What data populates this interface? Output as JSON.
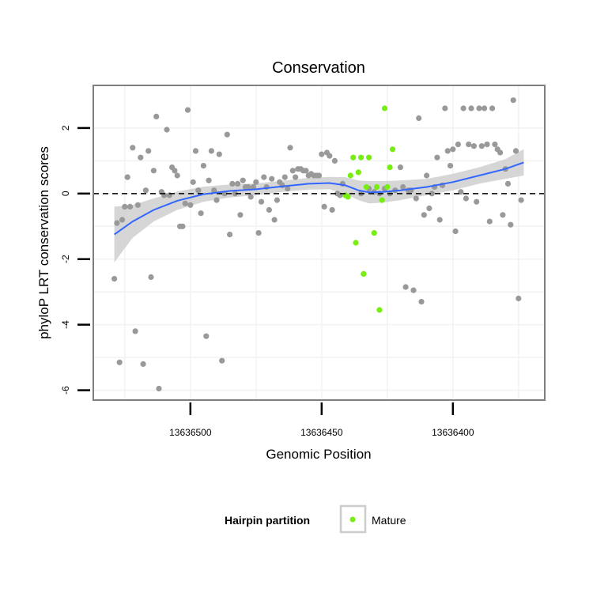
{
  "chart_data": {
    "type": "scatter",
    "title": "Conservation",
    "xlabel": "Genomic Position",
    "ylabel": "phyloP LRT conservation scores",
    "x_reversed": true,
    "xlim": [
      13636537,
      13636365
    ],
    "ylim": [
      -6.3,
      3.3
    ],
    "x_ticks": [
      13636500,
      13636450,
      13636400
    ],
    "y_ticks": [
      2,
      0,
      -2,
      -4,
      -6
    ],
    "reference_line": {
      "y": 0,
      "style": "dashed",
      "color": "#000000"
    },
    "grid": true,
    "legend": {
      "title": "Hairpin partition",
      "placement": "bottom",
      "entries": [
        {
          "label": "Mature",
          "color": "#77ee11"
        }
      ]
    },
    "colors": {
      "other": "#999999",
      "mature": "#77ee11",
      "smooth_line": "#3366ff",
      "ribbon": "#cfcfcf",
      "panel_border": "#7f7f7f"
    },
    "series": [
      {
        "name": "",
        "partition": "other",
        "points": [
          [
            13636529,
            -2.6
          ],
          [
            13636528,
            -0.9
          ],
          [
            13636527,
            -5.15
          ],
          [
            13636526,
            -0.8
          ],
          [
            13636525,
            -0.4
          ],
          [
            13636524,
            0.5
          ],
          [
            13636523,
            -0.4
          ],
          [
            13636522,
            1.4
          ],
          [
            13636521,
            -4.2
          ],
          [
            13636520,
            -0.35
          ],
          [
            13636519,
            1.1
          ],
          [
            13636518,
            -5.2
          ],
          [
            13636517,
            0.1
          ],
          [
            13636516,
            1.3
          ],
          [
            13636515,
            -2.55
          ],
          [
            13636514,
            0.7
          ],
          [
            13636513,
            2.35
          ],
          [
            13636512,
            -5.95
          ],
          [
            13636511,
            0.05
          ],
          [
            13636510,
            -0.05
          ],
          [
            13636509,
            1.95
          ],
          [
            13636508,
            -0.05
          ],
          [
            13636507,
            0.8
          ],
          [
            13636506,
            0.7
          ],
          [
            13636505,
            0.55
          ],
          [
            13636504,
            -1.0
          ],
          [
            13636503,
            -1.0
          ],
          [
            13636502,
            -0.3
          ],
          [
            13636501,
            2.55
          ],
          [
            13636500,
            -0.35
          ],
          [
            13636499,
            0.35
          ],
          [
            13636498,
            1.3
          ],
          [
            13636497,
            0.1
          ],
          [
            13636496,
            -0.6
          ],
          [
            13636495,
            0.85
          ],
          [
            13636494,
            -4.35
          ],
          [
            13636493,
            0.4
          ],
          [
            13636492,
            1.3
          ],
          [
            13636491,
            0.1
          ],
          [
            13636490,
            -0.2
          ],
          [
            13636489,
            1.2
          ],
          [
            13636488,
            -5.1
          ],
          [
            13636487,
            0.0
          ],
          [
            13636486,
            1.8
          ],
          [
            13636485,
            -1.25
          ],
          [
            13636484,
            0.3
          ],
          [
            13636483,
            0.0
          ],
          [
            13636482,
            0.3
          ],
          [
            13636481,
            -0.65
          ],
          [
            13636480,
            0.4
          ],
          [
            13636479,
            0.2
          ],
          [
            13636478,
            0.2
          ],
          [
            13636477,
            -0.1
          ],
          [
            13636476,
            0.2
          ],
          [
            13636475,
            0.35
          ],
          [
            13636474,
            -1.2
          ],
          [
            13636473,
            -0.25
          ],
          [
            13636472,
            0.5
          ],
          [
            13636471,
            0.2
          ],
          [
            13636470,
            -0.5
          ],
          [
            13636469,
            0.45
          ],
          [
            13636468,
            -0.8
          ],
          [
            13636467,
            -0.2
          ],
          [
            13636466,
            0.35
          ],
          [
            13636465,
            0.25
          ],
          [
            13636464,
            0.5
          ],
          [
            13636463,
            0.15
          ],
          [
            13636462,
            1.4
          ],
          [
            13636461,
            0.7
          ],
          [
            13636460,
            0.5
          ],
          [
            13636459,
            0.75
          ],
          [
            13636458,
            0.75
          ],
          [
            13636457,
            0.7
          ],
          [
            13636456,
            0.7
          ],
          [
            13636455,
            0.55
          ],
          [
            13636454,
            0.6
          ],
          [
            13636453,
            0.55
          ],
          [
            13636452,
            0.55
          ],
          [
            13636451,
            0.55
          ],
          [
            13636450,
            1.2
          ],
          [
            13636449,
            -0.4
          ],
          [
            13636448,
            1.25
          ],
          [
            13636447,
            1.15
          ],
          [
            13636446,
            -0.5
          ],
          [
            13636445,
            1.0
          ],
          [
            13636444,
            0.0
          ],
          [
            13636443,
            -0.05
          ],
          [
            13636442,
            0.3
          ],
          [
            13636435,
            0.0
          ],
          [
            13636432,
            0.15
          ],
          [
            13636430,
            0.05
          ],
          [
            13636428,
            0.0
          ],
          [
            13636426,
            0.15
          ],
          [
            13636424,
            0.0
          ],
          [
            13636422,
            0.1
          ],
          [
            13636420,
            0.8
          ],
          [
            13636419,
            0.2
          ],
          [
            13636418,
            -2.85
          ],
          [
            13636417,
            0.1
          ],
          [
            13636416,
            0.1
          ],
          [
            13636415,
            -2.95
          ],
          [
            13636414,
            -0.15
          ],
          [
            13636413,
            2.3
          ],
          [
            13636412,
            -3.3
          ],
          [
            13636411,
            -0.65
          ],
          [
            13636410,
            0.55
          ],
          [
            13636409,
            -0.45
          ],
          [
            13636408,
            0.0
          ],
          [
            13636407,
            0.2
          ],
          [
            13636406,
            1.1
          ],
          [
            13636405,
            -0.8
          ],
          [
            13636404,
            0.25
          ],
          [
            13636403,
            2.6
          ],
          [
            13636402,
            1.3
          ],
          [
            13636401,
            0.85
          ],
          [
            13636400,
            1.35
          ],
          [
            13636399,
            -1.15
          ],
          [
            13636398,
            1.5
          ],
          [
            13636397,
            0.05
          ],
          [
            13636396,
            2.6
          ],
          [
            13636395,
            -0.15
          ],
          [
            13636394,
            1.5
          ],
          [
            13636393,
            2.6
          ],
          [
            13636392,
            1.45
          ],
          [
            13636391,
            -0.25
          ],
          [
            13636390,
            2.6
          ],
          [
            13636389,
            1.45
          ],
          [
            13636388,
            2.6
          ],
          [
            13636387,
            1.5
          ],
          [
            13636386,
            -0.85
          ],
          [
            13636385,
            2.6
          ],
          [
            13636384,
            1.5
          ],
          [
            13636383,
            1.35
          ],
          [
            13636382,
            1.25
          ],
          [
            13636381,
            -0.65
          ],
          [
            13636380,
            0.75
          ],
          [
            13636379,
            0.3
          ],
          [
            13636378,
            -0.95
          ],
          [
            13636377,
            2.85
          ],
          [
            13636376,
            1.3
          ],
          [
            13636375,
            -3.2
          ],
          [
            13636374,
            -0.2
          ]
        ]
      },
      {
        "name": "Mature",
        "partition": "mature",
        "points": [
          [
            13636441,
            -0.05
          ],
          [
            13636440,
            -0.1
          ],
          [
            13636439,
            0.55
          ],
          [
            13636438,
            1.1
          ],
          [
            13636437,
            -1.5
          ],
          [
            13636436,
            0.65
          ],
          [
            13636435,
            1.1
          ],
          [
            13636434,
            -2.45
          ],
          [
            13636433,
            0.2
          ],
          [
            13636432,
            1.1
          ],
          [
            13636430,
            -1.2
          ],
          [
            13636429,
            0.2
          ],
          [
            13636428,
            -3.55
          ],
          [
            13636427,
            -0.2
          ],
          [
            13636426,
            2.6
          ],
          [
            13636425,
            0.2
          ],
          [
            13636424,
            0.8
          ],
          [
            13636423,
            1.35
          ]
        ]
      }
    ],
    "smooth": {
      "method": "loess",
      "line": [
        [
          13636529,
          -1.25
        ],
        [
          13636522,
          -0.85
        ],
        [
          13636514,
          -0.5
        ],
        [
          13636505,
          -0.22
        ],
        [
          13636495,
          -0.02
        ],
        [
          13636485,
          0.08
        ],
        [
          13636475,
          0.13
        ],
        [
          13636465,
          0.22
        ],
        [
          13636455,
          0.3
        ],
        [
          13636447,
          0.32
        ],
        [
          13636441,
          0.25
        ],
        [
          13636436,
          0.1
        ],
        [
          13636432,
          0.04
        ],
        [
          13636427,
          0.05
        ],
        [
          13636420,
          0.1
        ],
        [
          13636410,
          0.2
        ],
        [
          13636400,
          0.35
        ],
        [
          13636390,
          0.55
        ],
        [
          13636380,
          0.75
        ],
        [
          13636373,
          0.95
        ]
      ],
      "lower": [
        [
          13636529,
          -2.1
        ],
        [
          13636522,
          -1.35
        ],
        [
          13636514,
          -0.85
        ],
        [
          13636505,
          -0.5
        ],
        [
          13636495,
          -0.25
        ],
        [
          13636485,
          -0.12
        ],
        [
          13636475,
          -0.05
        ],
        [
          13636465,
          0.05
        ],
        [
          13636455,
          0.12
        ],
        [
          13636447,
          0.13
        ],
        [
          13636441,
          0.0
        ],
        [
          13636436,
          -0.2
        ],
        [
          13636432,
          -0.3
        ],
        [
          13636427,
          -0.28
        ],
        [
          13636420,
          -0.2
        ],
        [
          13636410,
          -0.05
        ],
        [
          13636400,
          0.1
        ],
        [
          13636390,
          0.3
        ],
        [
          13636380,
          0.45
        ],
        [
          13636373,
          0.55
        ]
      ],
      "upper": [
        [
          13636529,
          -0.4
        ],
        [
          13636522,
          -0.35
        ],
        [
          13636514,
          -0.15
        ],
        [
          13636505,
          0.06
        ],
        [
          13636495,
          0.21
        ],
        [
          13636485,
          0.28
        ],
        [
          13636475,
          0.31
        ],
        [
          13636465,
          0.39
        ],
        [
          13636455,
          0.48
        ],
        [
          13636447,
          0.51
        ],
        [
          13636441,
          0.5
        ],
        [
          13636436,
          0.4
        ],
        [
          13636432,
          0.38
        ],
        [
          13636427,
          0.38
        ],
        [
          13636420,
          0.4
        ],
        [
          13636410,
          0.45
        ],
        [
          13636400,
          0.6
        ],
        [
          13636390,
          0.8
        ],
        [
          13636380,
          1.05
        ],
        [
          13636373,
          1.35
        ]
      ]
    }
  }
}
